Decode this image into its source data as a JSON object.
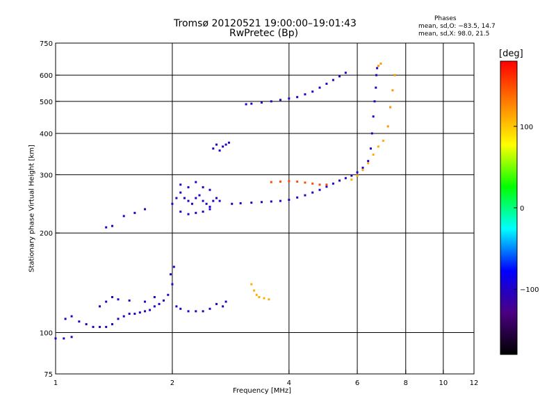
{
  "chart_data": {
    "type": "scatter",
    "title": "Tromsø 20120521 19:00:00–19:01:43",
    "subtitle": "RwPretec (Bp)",
    "xlabel": "Frequency [MHz]",
    "ylabel": "Stationary phase Virtual Height [km]",
    "x_scale": "log",
    "y_scale": "log",
    "xlim": [
      1,
      12
    ],
    "ylim": [
      75,
      750
    ],
    "x_ticks": [
      1,
      2,
      4,
      6,
      8,
      10,
      12
    ],
    "x_tick_labels": [
      "1",
      "2",
      "4",
      "6",
      "8",
      "10",
      "12"
    ],
    "y_ticks": [
      75,
      100,
      200,
      300,
      400,
      500,
      600,
      750
    ],
    "y_tick_labels": [
      "75",
      "100",
      "200",
      "300",
      "400",
      "500",
      "600",
      "750"
    ],
    "vertical_grid": [
      2,
      4,
      6,
      8,
      10
    ],
    "horizontal_grid": [
      100,
      200,
      300,
      400,
      500,
      600
    ],
    "grid": true,
    "phases": {
      "header": "Phases",
      "o_line": "mean, sd,O: −83.5, 14.7",
      "x_line": "mean, sd,X:  98.0, 21.5"
    },
    "colorbar": {
      "unit": "[deg]",
      "range": [
        -180,
        180
      ],
      "ticks": [
        100,
        0,
        -100
      ],
      "tick_labels": [
        "100",
        "0",
        "−100"
      ],
      "colors": [
        "#000000",
        "#4b0082",
        "#0000ff",
        "#00ffff",
        "#00ff00",
        "#ffff00",
        "#ff8000",
        "#ff0000"
      ]
    },
    "series": [
      {
        "phase": -100,
        "points": [
          [
            1.0,
            96
          ],
          [
            1.05,
            96
          ],
          [
            1.1,
            97
          ],
          [
            1.06,
            110
          ],
          [
            1.1,
            112
          ],
          [
            1.15,
            108
          ],
          [
            1.2,
            106
          ],
          [
            1.25,
            104
          ],
          [
            1.3,
            104
          ],
          [
            1.35,
            104
          ],
          [
            1.4,
            106
          ],
          [
            1.45,
            110
          ],
          [
            1.5,
            112
          ],
          [
            1.55,
            114
          ],
          [
            1.6,
            114
          ],
          [
            1.65,
            115
          ],
          [
            1.7,
            116
          ],
          [
            1.75,
            117
          ],
          [
            1.8,
            120
          ],
          [
            1.85,
            122
          ],
          [
            1.9,
            125
          ],
          [
            1.95,
            130
          ],
          [
            2.0,
            140
          ],
          [
            1.98,
            150
          ],
          [
            2.02,
            158
          ],
          [
            2.05,
            120
          ],
          [
            2.1,
            118
          ],
          [
            2.2,
            116
          ],
          [
            2.3,
            116
          ],
          [
            2.4,
            116
          ],
          [
            2.5,
            118
          ],
          [
            2.6,
            122
          ],
          [
            2.7,
            120
          ],
          [
            2.75,
            124
          ],
          [
            1.3,
            120
          ],
          [
            1.35,
            124
          ],
          [
            1.4,
            128
          ],
          [
            1.45,
            126
          ],
          [
            1.55,
            125
          ],
          [
            1.7,
            124
          ],
          [
            1.8,
            128
          ]
        ]
      },
      {
        "phase": -100,
        "points": [
          [
            1.35,
            208
          ],
          [
            1.4,
            210
          ],
          [
            1.5,
            225
          ],
          [
            1.6,
            230
          ],
          [
            1.7,
            236
          ]
        ]
      },
      {
        "phase": -100,
        "points": [
          [
            2.0,
            245
          ],
          [
            2.05,
            255
          ],
          [
            2.1,
            265
          ],
          [
            2.15,
            255
          ],
          [
            2.2,
            250
          ],
          [
            2.25,
            245
          ],
          [
            2.3,
            255
          ],
          [
            2.35,
            260
          ],
          [
            2.4,
            250
          ],
          [
            2.45,
            245
          ],
          [
            2.5,
            240
          ],
          [
            2.55,
            250
          ],
          [
            2.6,
            255
          ],
          [
            2.65,
            250
          ],
          [
            2.1,
            280
          ],
          [
            2.2,
            275
          ],
          [
            2.3,
            285
          ],
          [
            2.4,
            275
          ],
          [
            2.5,
            270
          ],
          [
            2.1,
            232
          ],
          [
            2.2,
            228
          ],
          [
            2.3,
            230
          ],
          [
            2.4,
            232
          ],
          [
            2.5,
            236
          ]
        ]
      },
      {
        "phase": -100,
        "points": [
          [
            2.55,
            360
          ],
          [
            2.6,
            370
          ],
          [
            2.65,
            355
          ],
          [
            2.7,
            365
          ],
          [
            2.75,
            370
          ],
          [
            2.8,
            375
          ]
        ]
      },
      {
        "phase": -100,
        "points": [
          [
            2.85,
            245
          ],
          [
            3.0,
            246
          ],
          [
            3.2,
            247
          ],
          [
            3.4,
            248
          ],
          [
            3.6,
            249
          ],
          [
            3.8,
            250
          ],
          [
            4.0,
            252
          ],
          [
            4.2,
            256
          ],
          [
            4.4,
            260
          ],
          [
            4.6,
            265
          ],
          [
            4.8,
            270
          ],
          [
            5.0,
            276
          ],
          [
            5.2,
            282
          ],
          [
            5.4,
            288
          ],
          [
            5.6,
            293
          ],
          [
            5.8,
            298
          ],
          [
            6.0,
            305
          ],
          [
            6.2,
            315
          ],
          [
            6.4,
            330
          ],
          [
            6.5,
            360
          ],
          [
            6.55,
            400
          ],
          [
            6.6,
            450
          ],
          [
            6.65,
            500
          ],
          [
            6.7,
            550
          ],
          [
            6.72,
            600
          ],
          [
            6.75,
            630
          ]
        ]
      },
      {
        "phase": -100,
        "points": [
          [
            3.1,
            490
          ],
          [
            3.2,
            492
          ],
          [
            3.4,
            496
          ],
          [
            3.6,
            500
          ],
          [
            3.8,
            505
          ],
          [
            4.0,
            510
          ],
          [
            4.2,
            515
          ],
          [
            4.4,
            525
          ],
          [
            4.6,
            535
          ],
          [
            4.8,
            550
          ],
          [
            5.0,
            565
          ],
          [
            5.2,
            580
          ],
          [
            5.4,
            595
          ],
          [
            5.6,
            610
          ]
        ]
      },
      {
        "phase": 150,
        "points": [
          [
            3.6,
            285
          ],
          [
            3.8,
            286
          ],
          [
            4.0,
            287
          ],
          [
            4.2,
            286
          ],
          [
            4.4,
            284
          ],
          [
            4.6,
            282
          ],
          [
            4.8,
            280
          ],
          [
            5.0,
            280
          ]
        ]
      },
      {
        "phase": 110,
        "points": [
          [
            5.8,
            290
          ],
          [
            6.0,
            298
          ],
          [
            6.2,
            310
          ],
          [
            6.4,
            325
          ],
          [
            6.6,
            345
          ],
          [
            6.8,
            365
          ],
          [
            7.0,
            380
          ]
        ]
      },
      {
        "phase": 110,
        "points": [
          [
            3.2,
            140
          ],
          [
            3.25,
            134
          ],
          [
            3.3,
            130
          ],
          [
            3.35,
            128
          ],
          [
            3.45,
            127
          ],
          [
            3.55,
            126
          ]
        ]
      },
      {
        "phase": 120,
        "points": [
          [
            7.2,
            420
          ],
          [
            7.3,
            480
          ],
          [
            7.4,
            540
          ],
          [
            7.5,
            600
          ],
          [
            6.8,
            640
          ],
          [
            6.9,
            650
          ]
        ]
      }
    ]
  }
}
